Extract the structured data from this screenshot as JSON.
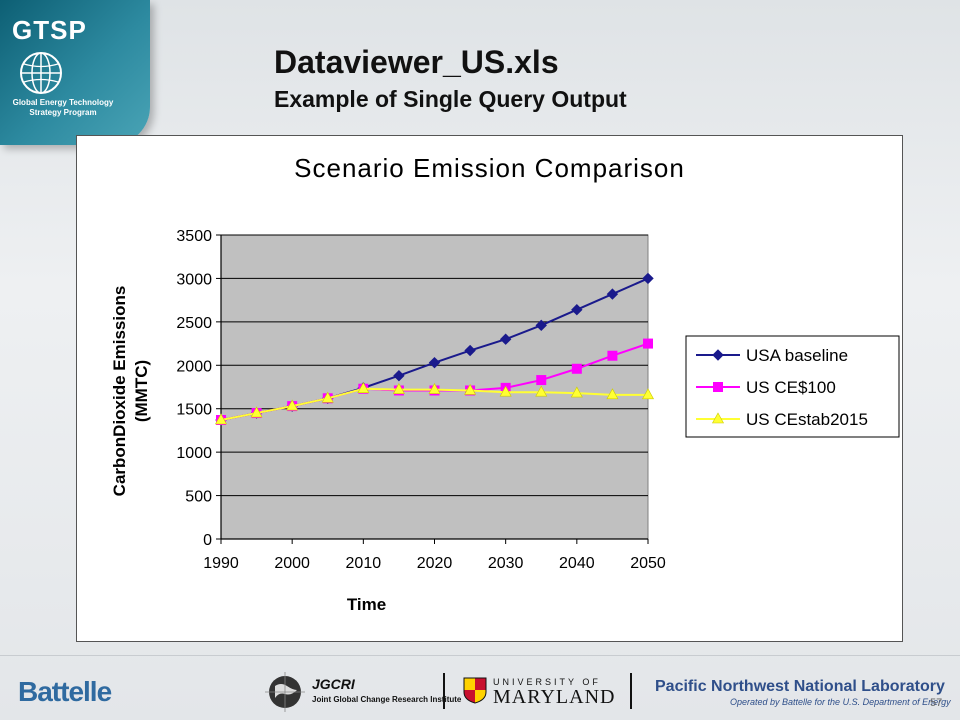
{
  "slide": {
    "title": "Dataviewer_US.xls",
    "subtitle": "Example of Single Query Output",
    "page_number": "57"
  },
  "logo": {
    "name": "GTSP",
    "subtitle": "Global Energy Technology Strategy Program",
    "icon": "globe-icon"
  },
  "footer": {
    "battelle": "Battelle",
    "jgcri_title": "JGCRI",
    "jgcri_sub": "Joint Global Change Research Institute",
    "umd_top": "UNIVERSITY OF",
    "umd_main": "MARYLAND",
    "pnnl_main": "Pacific Northwest National Laboratory",
    "pnnl_sub": "Operated by Battelle for the U.S. Department of Energy"
  },
  "colors": {
    "usa_baseline": "#1a1a8c",
    "us_ce100": "#ff00ff",
    "us_cestab2015": "#ffff33",
    "plot_bg": "#c0c0c0"
  },
  "chart_data": {
    "type": "line",
    "title": "Scenario Emission Comparison",
    "xlabel": "Time",
    "ylabel": "CarbonDioxide Emissions (MMTC)",
    "ylabel_lines": [
      "CarbonDioxide Emissions",
      "(MMTC)"
    ],
    "x": [
      1990,
      1995,
      2000,
      2005,
      2010,
      2015,
      2020,
      2025,
      2030,
      2035,
      2040,
      2045,
      2050
    ],
    "xlim": [
      1990,
      2050
    ],
    "x_ticks": [
      "1990",
      "2000",
      "2010",
      "2020",
      "2030",
      "2040",
      "2050"
    ],
    "ylim": [
      0,
      3500
    ],
    "y_ticks": [
      "0",
      "500",
      "1000",
      "1500",
      "2000",
      "2500",
      "3000",
      "3500"
    ],
    "grid": true,
    "legend": "right",
    "series": [
      {
        "name": "USA baseline",
        "marker": "diamond",
        "color": "#1a1a8c",
        "values": [
          1370,
          1450,
          1530,
          1620,
          1740,
          1880,
          2030,
          2170,
          2300,
          2460,
          2640,
          2820,
          3000
        ]
      },
      {
        "name": "US CE$100",
        "marker": "square",
        "color": "#ff00ff",
        "values": [
          1370,
          1450,
          1530,
          1620,
          1730,
          1710,
          1710,
          1710,
          1740,
          1830,
          1960,
          2110,
          2250
        ]
      },
      {
        "name": "US CEstab2015",
        "marker": "triangle",
        "color": "#ffff33",
        "values": [
          1370,
          1450,
          1530,
          1620,
          1730,
          1720,
          1720,
          1710,
          1690,
          1690,
          1680,
          1660,
          1660
        ]
      }
    ]
  }
}
